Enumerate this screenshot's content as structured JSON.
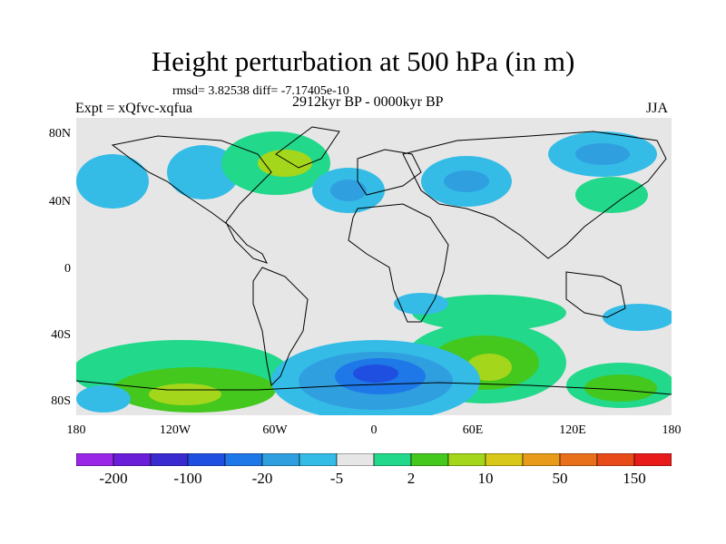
{
  "title": "Height perturbation at 500 hPa (in m)",
  "stats": "rmsd= 3.82538 diff= -7.17405e-10",
  "experiment": "Expt = xQfvc-xqfua",
  "period": "2912kyr BP - 0000kyr BP",
  "season": "JJA",
  "map": {
    "lat_labels": [
      "80N",
      "40N",
      "0",
      "40S",
      "80S"
    ],
    "lon_labels": [
      "180",
      "120W",
      "60W",
      "0",
      "60E",
      "120E",
      "180"
    ],
    "land_color": "#000000",
    "background_color": "#e6e6e6"
  },
  "colorbar": {
    "colors": [
      "#9a27e8",
      "#6a1ed8",
      "#3a2bd0",
      "#1f4fe0",
      "#1e78e8",
      "#2f9fe0",
      "#34bce6",
      "#e6e6e6",
      "#22d88a",
      "#44c81e",
      "#a4d61c",
      "#d8c81a",
      "#e89a1a",
      "#e8701a",
      "#e84a1a",
      "#e81a1a"
    ],
    "labels": [
      "-200",
      "-100",
      "-20",
      "-5",
      "2",
      "10",
      "50",
      "150"
    ]
  }
}
